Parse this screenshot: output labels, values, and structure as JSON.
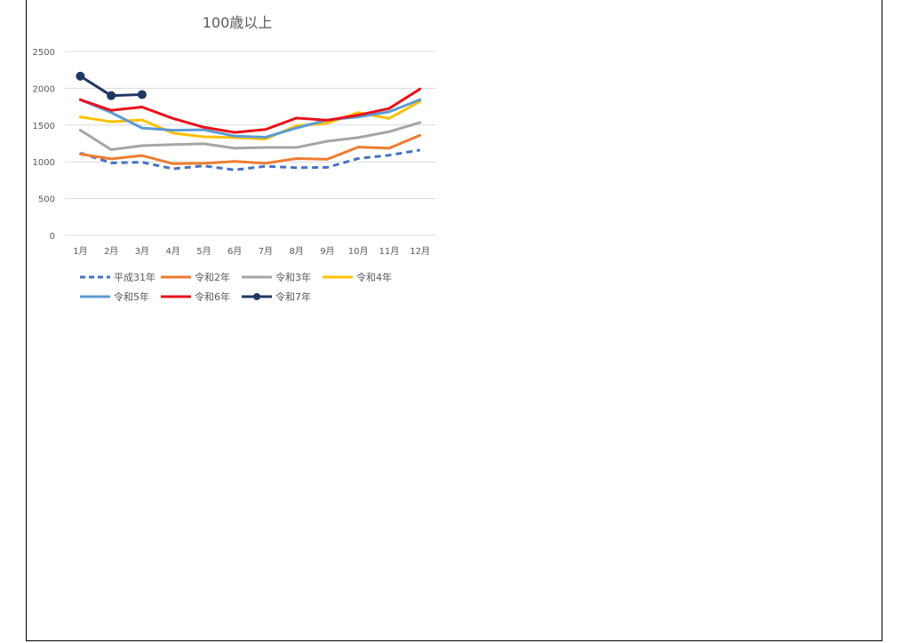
{
  "chart_data": {
    "type": "line",
    "title": "100歳以上",
    "xlabel": "",
    "ylabel": "",
    "ylim": [
      0,
      2500
    ],
    "yticks": [
      0,
      500,
      1000,
      1500,
      2000,
      2500
    ],
    "grid": true,
    "legend_position": "bottom",
    "categories": [
      "1月",
      "2月",
      "3月",
      "4月",
      "5月",
      "6月",
      "7月",
      "8月",
      "9月",
      "10月",
      "11月",
      "12月"
    ],
    "series": [
      {
        "name": "平成31年",
        "color": "#4472C4",
        "dash": true,
        "marker": false,
        "values": [
          1120,
          985,
          995,
          905,
          945,
          890,
          940,
          920,
          925,
          1045,
          1090,
          1160
        ]
      },
      {
        "name": "令和2年",
        "color": "#ED7D31",
        "dash": false,
        "marker": false,
        "values": [
          1105,
          1040,
          1085,
          975,
          980,
          1005,
          980,
          1045,
          1035,
          1200,
          1185,
          1360
        ]
      },
      {
        "name": "令和3年",
        "color": "#A5A5A5",
        "dash": false,
        "marker": false,
        "values": [
          1430,
          1165,
          1220,
          1235,
          1245,
          1185,
          1195,
          1195,
          1280,
          1330,
          1410,
          1535
        ]
      },
      {
        "name": "令和4年",
        "color": "#FFC000",
        "dash": false,
        "marker": false,
        "values": [
          1610,
          1545,
          1570,
          1390,
          1340,
          1330,
          1310,
          1490,
          1525,
          1670,
          1590,
          1820
        ]
      },
      {
        "name": "令和5年",
        "color": "#5B9BD5",
        "dash": false,
        "marker": false,
        "values": [
          1845,
          1670,
          1460,
          1430,
          1435,
          1350,
          1335,
          1460,
          1570,
          1610,
          1680,
          1845
        ]
      },
      {
        "name": "令和6年",
        "color": "#E8101A",
        "dash": false,
        "marker": false,
        "values": [
          1845,
          1700,
          1745,
          1590,
          1470,
          1400,
          1440,
          1595,
          1565,
          1635,
          1725,
          1990
        ]
      },
      {
        "name": "令和7年",
        "color": "#203864",
        "dash": false,
        "marker": true,
        "values": [
          2165,
          1900,
          1915,
          null,
          null,
          null,
          null,
          null,
          null,
          null,
          null,
          null
        ]
      }
    ]
  }
}
